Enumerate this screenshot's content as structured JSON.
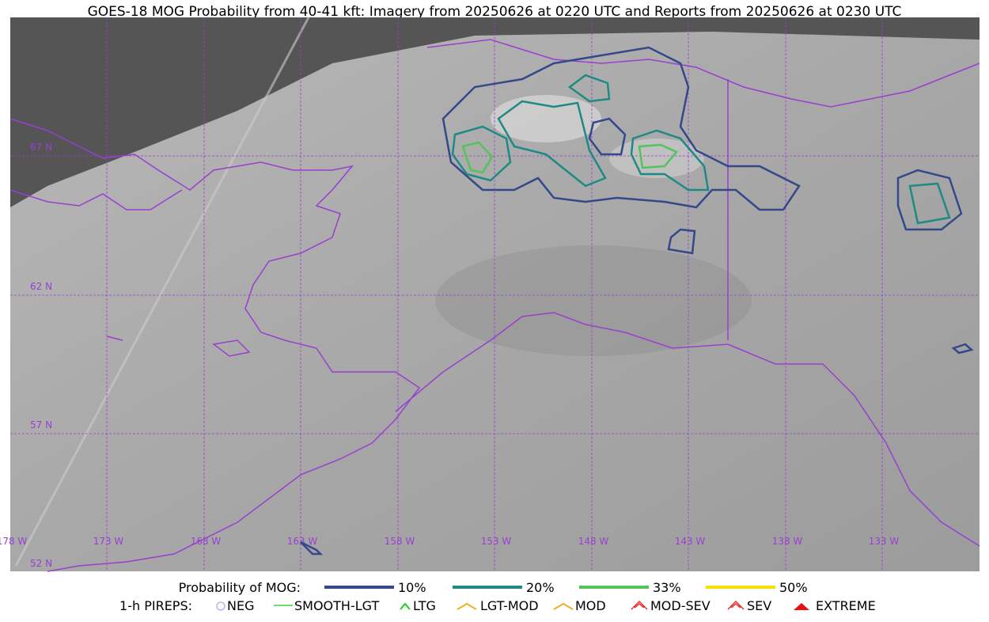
{
  "title": "GOES-18 MOG Probability from 40-41 kft: Imagery from 20250626 at 0220 UTC and Reports from 20250626 at 0230 UTC",
  "latitude_labels": [
    "67 N",
    "62 N",
    "57 N",
    "52 N"
  ],
  "longitude_labels": [
    "178 W",
    "173 W",
    "168 W",
    "163 W",
    "158 W",
    "153 W",
    "148 W",
    "143 W",
    "138 W",
    "133 W"
  ],
  "legend": {
    "probability": {
      "label": "Probability of MOG:",
      "items": [
        {
          "label": "10%",
          "color": "#34488a"
        },
        {
          "label": "20%",
          "color": "#1f8a84"
        },
        {
          "label": "33%",
          "color": "#52c45a"
        },
        {
          "label": "50%",
          "color": "#f5e000"
        }
      ]
    },
    "pireps": {
      "label": "1-h PIREPS:",
      "items": [
        {
          "label": "NEG",
          "color": "#b8b8f0"
        },
        {
          "label": "SMOOTH-LGT",
          "color": "#3ad43a"
        },
        {
          "label": "LTG",
          "color": "#22cc22"
        },
        {
          "label": "LGT-MOD",
          "color": "#f0b020"
        },
        {
          "label": "MOD",
          "color": "#f0b020"
        },
        {
          "label": "MOD-SEV",
          "color": "#e83030"
        },
        {
          "label": "SEV",
          "color": "#e83030"
        },
        {
          "label": "EXTREME",
          "color": "#e81010"
        }
      ]
    }
  }
}
